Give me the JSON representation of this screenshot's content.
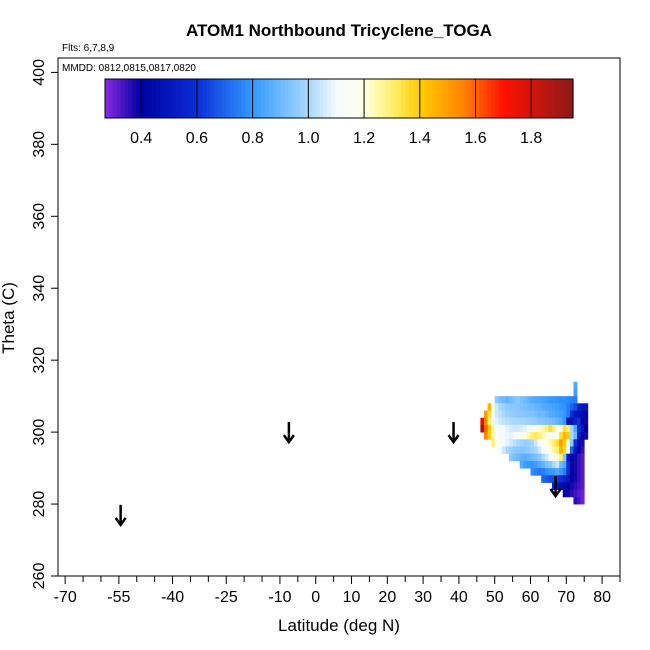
{
  "chart_data": {
    "type": "heatmap",
    "title": "ATOM1 Northbound Tricyclene_TOGA",
    "xlabel": "Latitude (deg N)",
    "ylabel": "Theta (C)",
    "xlim": [
      -72,
      85
    ],
    "ylim": [
      260,
      404
    ],
    "x_ticks": [
      -70,
      -55,
      -40,
      -25,
      -10,
      0,
      10,
      20,
      30,
      40,
      50,
      60,
      70,
      80
    ],
    "x_minor_ticks": [
      -65,
      -60,
      -50,
      -45,
      -35,
      -30,
      -20,
      -15,
      -5,
      5,
      15,
      25,
      35,
      45,
      55,
      65,
      75,
      85
    ],
    "y_ticks": [
      260,
      280,
      300,
      320,
      340,
      360,
      380,
      400
    ],
    "flights_note": "Flts: 6,7,8,9",
    "dates_note": "MMDD: 0812,0815,0817,0820",
    "colorbar": {
      "range": [
        0.27,
        1.95
      ],
      "ticks": [
        0.4,
        0.6,
        0.8,
        1.0,
        1.2,
        1.4,
        1.6,
        1.8
      ],
      "tick_labels": [
        "0.4",
        "0.6",
        "0.8",
        "1.0",
        "1.2",
        "1.4",
        "1.6",
        "1.8"
      ],
      "stops": [
        {
          "v": 0.27,
          "c": "#8a2be2"
        },
        {
          "v": 0.4,
          "c": "#0000a0"
        },
        {
          "v": 0.6,
          "c": "#0a2ed8"
        },
        {
          "v": 0.8,
          "c": "#3399ff"
        },
        {
          "v": 1.0,
          "c": "#a8d8ff"
        },
        {
          "v": 1.1,
          "c": "#f4faff"
        },
        {
          "v": 1.2,
          "c": "#ffffe6"
        },
        {
          "v": 1.3,
          "c": "#fff070"
        },
        {
          "v": 1.4,
          "c": "#ffcc00"
        },
        {
          "v": 1.55,
          "c": "#ff8800"
        },
        {
          "v": 1.7,
          "c": "#ff1100"
        },
        {
          "v": 1.95,
          "c": "#8b1a1a"
        }
      ]
    },
    "arrows": [
      {
        "lat": -54.5,
        "theta": 277
      },
      {
        "lat": -7.5,
        "theta": 300
      },
      {
        "lat": 38.5,
        "theta": 300
      },
      {
        "lat": 67,
        "theta": 285
      }
    ],
    "heatmap_cell": {
      "dlat": 1,
      "dtheta": 2
    },
    "heatmap_rows": [
      {
        "theta": 313,
        "lat_start": 72,
        "values": [
          0.85
        ]
      },
      {
        "theta": 311,
        "lat_start": 72,
        "values": [
          0.82
        ]
      },
      {
        "theta": 309,
        "lat_start": 50,
        "values": [
          0.95,
          0.92,
          0.9,
          0.88,
          0.9,
          0.93,
          0.95,
          0.92,
          0.9,
          0.88,
          0.86,
          0.85,
          0.84,
          0.83,
          0.82,
          0.8,
          0.8,
          0.79,
          0.78,
          0.78,
          0.77,
          0.76,
          0.75
        ]
      },
      {
        "theta": 307,
        "lat_start": 48,
        "values": [
          1.45,
          1.2,
          1.05,
          1.0,
          0.98,
          0.96,
          0.95,
          0.95,
          0.94,
          0.93,
          0.92,
          0.91,
          0.9,
          0.89,
          0.88,
          0.86,
          0.85,
          0.84,
          0.83,
          0.82,
          0.8,
          0.79,
          0.75,
          0.7,
          0.65,
          0.55,
          0.5,
          0.5
        ]
      },
      {
        "theta": 305,
        "lat_start": 47,
        "values": [
          1.5,
          1.35,
          1.15,
          1.05,
          1.02,
          1.0,
          0.98,
          0.97,
          0.96,
          0.95,
          0.95,
          0.94,
          0.94,
          0.93,
          0.92,
          0.9,
          0.9,
          0.88,
          0.86,
          0.85,
          0.83,
          0.82,
          0.8,
          0.75,
          0.6,
          0.5,
          0.48,
          0.45,
          0.44
        ]
      },
      {
        "theta": 303,
        "lat_start": 46,
        "values": [
          1.75,
          1.55,
          1.3,
          1.12,
          1.08,
          1.05,
          1.03,
          1.02,
          1.01,
          1.0,
          1.0,
          0.99,
          0.99,
          0.98,
          0.97,
          0.96,
          0.95,
          0.94,
          0.93,
          0.92,
          0.9,
          0.88,
          0.85,
          0.8,
          0.45,
          0.5,
          0.55,
          0.6,
          0.4,
          0.38
        ]
      },
      {
        "theta": 301,
        "lat_start": 46,
        "values": [
          1.9,
          1.6,
          1.4,
          1.25,
          1.15,
          1.12,
          1.1,
          1.08,
          1.06,
          1.05,
          1.05,
          1.06,
          1.08,
          1.1,
          1.12,
          1.15,
          1.2,
          1.25,
          1.3,
          1.35,
          1.3,
          1.2,
          1.1,
          1.35,
          1.3,
          1.0,
          0.85,
          0.6,
          0.5,
          0.4
        ]
      },
      {
        "theta": 299,
        "lat_start": 47,
        "values": [
          1.55,
          1.4,
          1.25,
          1.15,
          1.12,
          1.1,
          1.09,
          1.08,
          1.1,
          1.12,
          1.15,
          1.2,
          1.25,
          1.3,
          1.32,
          1.3,
          1.25,
          1.2,
          1.15,
          1.1,
          1.15,
          1.35,
          1.45,
          1.4,
          1.0,
          0.9,
          0.55,
          0.42,
          0.38
        ]
      },
      {
        "theta": 297,
        "lat_start": 49,
        "values": [
          1.3,
          1.2,
          1.15,
          1.1,
          1.08,
          1.05,
          1.02,
          1.0,
          0.98,
          0.97,
          0.98,
          1.0,
          1.05,
          1.1,
          1.15,
          1.2,
          1.25,
          1.3,
          1.35,
          1.5,
          1.4,
          1.2,
          0.95,
          0.6,
          0.45,
          0.38
        ]
      },
      {
        "theta": 295,
        "lat_start": 51,
        "values": [
          1.1,
          1.05,
          1.0,
          0.98,
          0.96,
          0.95,
          0.94,
          0.95,
          0.96,
          0.98,
          1.0,
          1.05,
          1.1,
          1.15,
          1.2,
          1.25,
          1.3,
          1.45,
          1.35,
          1.2,
          0.7,
          0.5,
          0.4,
          0.35
        ]
      },
      {
        "theta": 293,
        "lat_start": 54,
        "values": [
          0.95,
          0.92,
          0.9,
          0.88,
          0.87,
          0.88,
          0.9,
          0.92,
          0.95,
          1.0,
          1.05,
          1.1,
          1.15,
          1.2,
          1.3,
          0.95,
          0.5,
          0.42,
          0.38,
          0.35,
          0.32
        ]
      },
      {
        "theta": 291,
        "lat_start": 57,
        "values": [
          0.85,
          0.82,
          0.8,
          0.8,
          0.82,
          0.85,
          0.88,
          0.92,
          0.95,
          1.0,
          1.05,
          0.9,
          0.85,
          0.6,
          0.42,
          0.38,
          0.35,
          0.32
        ]
      },
      {
        "theta": 289,
        "lat_start": 60,
        "values": [
          0.78,
          0.75,
          0.74,
          0.75,
          0.78,
          0.8,
          0.82,
          0.85,
          0.8,
          0.75,
          0.6,
          0.42,
          0.38,
          0.35,
          0.32
        ]
      },
      {
        "theta": 287,
        "lat_start": 63,
        "values": [
          0.7,
          0.68,
          0.66,
          0.65,
          0.62,
          0.6,
          0.55,
          0.5,
          0.42,
          0.38,
          0.35,
          0.32
        ]
      },
      {
        "theta": 285,
        "lat_start": 66,
        "values": [
          0.55,
          0.5,
          0.45,
          0.42,
          0.4,
          0.38,
          0.36,
          0.34,
          0.32
        ]
      },
      {
        "theta": 283,
        "lat_start": 69,
        "values": [
          0.4,
          0.38,
          0.36,
          0.34,
          0.32,
          0.3
        ]
      },
      {
        "theta": 281,
        "lat_start": 72,
        "values": [
          0.36,
          0.34,
          0.3
        ]
      }
    ]
  }
}
